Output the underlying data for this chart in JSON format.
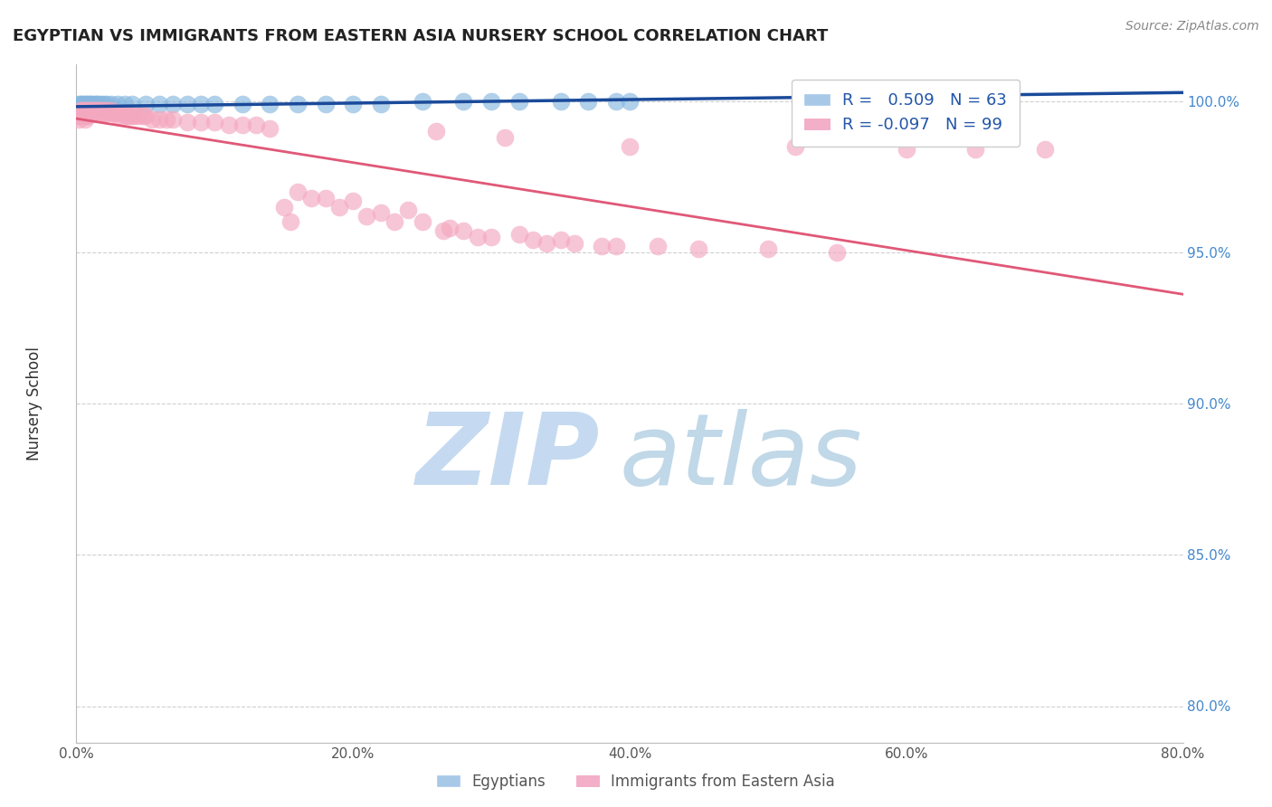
{
  "title": "EGYPTIAN VS IMMIGRANTS FROM EASTERN ASIA NURSERY SCHOOL CORRELATION CHART",
  "source": "Source: ZipAtlas.com",
  "ylabel": "Nursery School",
  "x_tick_vals": [
    0.0,
    0.2,
    0.4,
    0.6,
    0.8
  ],
  "x_tick_labels": [
    "0.0%",
    "20.0%",
    "40.0%",
    "60.0%",
    "80.0%"
  ],
  "y_tick_vals": [
    0.8,
    0.85,
    0.9,
    0.95,
    1.0
  ],
  "y_tick_labels": [
    "80.0%",
    "85.0%",
    "90.0%",
    "95.0%",
    "100.0%"
  ],
  "x_min": 0.0,
  "x_max": 0.8,
  "y_min": 0.788,
  "y_max": 1.012,
  "legend_entries": [
    {
      "label": "Egyptians",
      "color": "#a8c8e8",
      "R": "0.509",
      "N": "63"
    },
    {
      "label": "Immigrants from Eastern Asia",
      "color": "#f4afc8",
      "R": "-0.097",
      "N": "99"
    }
  ],
  "blue_scatter_color": "#88b8e0",
  "pink_scatter_color": "#f4a8c0",
  "blue_line_color": "#1a4a9a",
  "pink_line_color": "#e05878",
  "title_color": "#222222",
  "watermark_zip_color": "#c5daf0",
  "watermark_atlas_color": "#c0d8e8",
  "grid_color": "#d0d0d0",
  "ytick_color": "#4488cc",
  "xtick_color": "#555555",
  "blue_points": [
    [
      0.001,
      0.998
    ],
    [
      0.001,
      0.997
    ],
    [
      0.002,
      0.999
    ],
    [
      0.002,
      0.998
    ],
    [
      0.002,
      0.997
    ],
    [
      0.003,
      0.999
    ],
    [
      0.003,
      0.998
    ],
    [
      0.003,
      0.997
    ],
    [
      0.003,
      0.996
    ],
    [
      0.004,
      0.999
    ],
    [
      0.004,
      0.998
    ],
    [
      0.004,
      0.997
    ],
    [
      0.004,
      0.996
    ],
    [
      0.005,
      0.999
    ],
    [
      0.005,
      0.998
    ],
    [
      0.005,
      0.997
    ],
    [
      0.005,
      0.996
    ],
    [
      0.006,
      0.999
    ],
    [
      0.006,
      0.998
    ],
    [
      0.006,
      0.997
    ],
    [
      0.006,
      0.996
    ],
    [
      0.007,
      0.999
    ],
    [
      0.007,
      0.998
    ],
    [
      0.007,
      0.997
    ],
    [
      0.008,
      0.999
    ],
    [
      0.008,
      0.998
    ],
    [
      0.009,
      0.999
    ],
    [
      0.009,
      0.997
    ],
    [
      0.01,
      0.999
    ],
    [
      0.01,
      0.998
    ],
    [
      0.011,
      0.999
    ],
    [
      0.012,
      0.998
    ],
    [
      0.013,
      0.999
    ],
    [
      0.014,
      0.999
    ],
    [
      0.015,
      0.999
    ],
    [
      0.016,
      0.999
    ],
    [
      0.018,
      0.999
    ],
    [
      0.02,
      0.999
    ],
    [
      0.022,
      0.999
    ],
    [
      0.025,
      0.999
    ],
    [
      0.03,
      0.999
    ],
    [
      0.035,
      0.999
    ],
    [
      0.04,
      0.999
    ],
    [
      0.05,
      0.999
    ],
    [
      0.06,
      0.999
    ],
    [
      0.07,
      0.999
    ],
    [
      0.08,
      0.999
    ],
    [
      0.09,
      0.999
    ],
    [
      0.1,
      0.999
    ],
    [
      0.12,
      0.999
    ],
    [
      0.14,
      0.999
    ],
    [
      0.16,
      0.999
    ],
    [
      0.18,
      0.999
    ],
    [
      0.2,
      0.999
    ],
    [
      0.22,
      0.999
    ],
    [
      0.25,
      1.0
    ],
    [
      0.28,
      1.0
    ],
    [
      0.3,
      1.0
    ],
    [
      0.32,
      1.0
    ],
    [
      0.35,
      1.0
    ],
    [
      0.37,
      1.0
    ],
    [
      0.39,
      1.0
    ],
    [
      0.4,
      1.0
    ]
  ],
  "pink_points": [
    [
      0.001,
      0.995
    ],
    [
      0.002,
      0.996
    ],
    [
      0.002,
      0.994
    ],
    [
      0.003,
      0.997
    ],
    [
      0.003,
      0.996
    ],
    [
      0.003,
      0.995
    ],
    [
      0.004,
      0.997
    ],
    [
      0.004,
      0.996
    ],
    [
      0.005,
      0.997
    ],
    [
      0.005,
      0.996
    ],
    [
      0.005,
      0.995
    ],
    [
      0.006,
      0.997
    ],
    [
      0.006,
      0.996
    ],
    [
      0.006,
      0.995
    ],
    [
      0.006,
      0.994
    ],
    [
      0.007,
      0.997
    ],
    [
      0.007,
      0.996
    ],
    [
      0.007,
      0.995
    ],
    [
      0.008,
      0.997
    ],
    [
      0.008,
      0.996
    ],
    [
      0.008,
      0.995
    ],
    [
      0.009,
      0.997
    ],
    [
      0.009,
      0.996
    ],
    [
      0.01,
      0.997
    ],
    [
      0.01,
      0.996
    ],
    [
      0.011,
      0.997
    ],
    [
      0.012,
      0.997
    ],
    [
      0.012,
      0.996
    ],
    [
      0.013,
      0.997
    ],
    [
      0.014,
      0.997
    ],
    [
      0.015,
      0.997
    ],
    [
      0.015,
      0.996
    ],
    [
      0.016,
      0.997
    ],
    [
      0.018,
      0.997
    ],
    [
      0.018,
      0.996
    ],
    [
      0.02,
      0.997
    ],
    [
      0.02,
      0.996
    ],
    [
      0.022,
      0.997
    ],
    [
      0.022,
      0.996
    ],
    [
      0.025,
      0.997
    ],
    [
      0.025,
      0.996
    ],
    [
      0.028,
      0.996
    ],
    [
      0.03,
      0.996
    ],
    [
      0.03,
      0.995
    ],
    [
      0.033,
      0.996
    ],
    [
      0.035,
      0.995
    ],
    [
      0.037,
      0.995
    ],
    [
      0.038,
      0.995
    ],
    [
      0.04,
      0.995
    ],
    [
      0.042,
      0.995
    ],
    [
      0.045,
      0.995
    ],
    [
      0.048,
      0.995
    ],
    [
      0.05,
      0.995
    ],
    [
      0.055,
      0.994
    ],
    [
      0.06,
      0.994
    ],
    [
      0.065,
      0.994
    ],
    [
      0.07,
      0.994
    ],
    [
      0.08,
      0.993
    ],
    [
      0.09,
      0.993
    ],
    [
      0.1,
      0.993
    ],
    [
      0.11,
      0.992
    ],
    [
      0.12,
      0.992
    ],
    [
      0.13,
      0.992
    ],
    [
      0.14,
      0.991
    ],
    [
      0.15,
      0.965
    ],
    [
      0.155,
      0.96
    ],
    [
      0.16,
      0.97
    ],
    [
      0.17,
      0.968
    ],
    [
      0.18,
      0.968
    ],
    [
      0.19,
      0.965
    ],
    [
      0.2,
      0.967
    ],
    [
      0.21,
      0.962
    ],
    [
      0.22,
      0.963
    ],
    [
      0.23,
      0.96
    ],
    [
      0.24,
      0.964
    ],
    [
      0.25,
      0.96
    ],
    [
      0.26,
      0.99
    ],
    [
      0.265,
      0.957
    ],
    [
      0.27,
      0.958
    ],
    [
      0.28,
      0.957
    ],
    [
      0.29,
      0.955
    ],
    [
      0.3,
      0.955
    ],
    [
      0.31,
      0.988
    ],
    [
      0.32,
      0.956
    ],
    [
      0.33,
      0.954
    ],
    [
      0.34,
      0.953
    ],
    [
      0.35,
      0.954
    ],
    [
      0.36,
      0.953
    ],
    [
      0.38,
      0.952
    ],
    [
      0.39,
      0.952
    ],
    [
      0.4,
      0.985
    ],
    [
      0.42,
      0.952
    ],
    [
      0.45,
      0.951
    ],
    [
      0.5,
      0.951
    ],
    [
      0.52,
      0.985
    ],
    [
      0.55,
      0.95
    ],
    [
      0.6,
      0.984
    ],
    [
      0.65,
      0.984
    ],
    [
      0.7,
      0.984
    ]
  ]
}
